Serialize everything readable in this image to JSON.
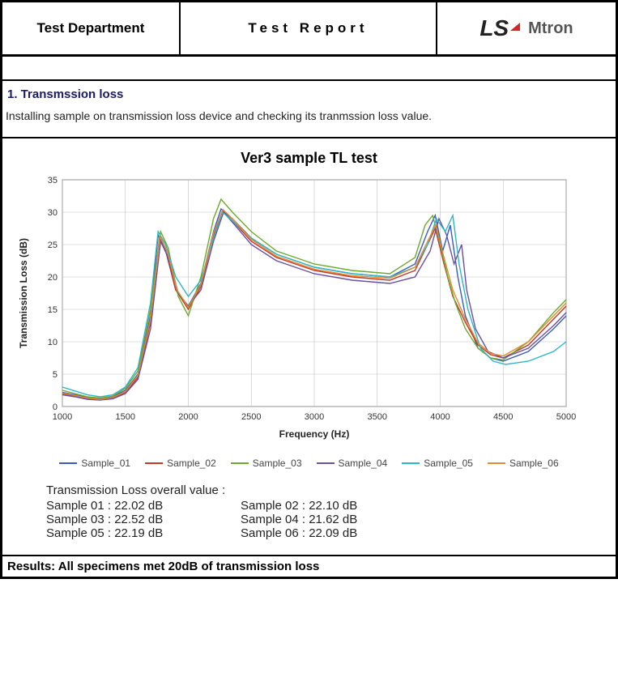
{
  "header": {
    "dept": "Test Department",
    "title": "Test  Report",
    "logo_ls": "LS",
    "logo_mtron": "Mtron"
  },
  "section1": {
    "title": "1. Transmssion loss",
    "desc": "Installing sample on transmission loss device and checking its tranmssion loss value."
  },
  "chart": {
    "type": "line",
    "title": "Ver3 sample TL test",
    "xlabel": "Frequency (Hz)",
    "ylabel": "Transmission  Loss (dB)",
    "xlim": [
      1000,
      5000
    ],
    "ylim": [
      0,
      35
    ],
    "xtick_step": 500,
    "ytick_step": 5,
    "xticks": [
      1000,
      1500,
      2000,
      2500,
      3000,
      3500,
      4000,
      4500,
      5000
    ],
    "yticks": [
      0,
      5,
      10,
      15,
      20,
      25,
      30,
      35
    ],
    "background_color": "#ffffff",
    "grid_color": "#bfbfbf",
    "axis_color": "#666666",
    "tick_fontsize": 11,
    "label_fontsize": 12,
    "title_fontsize": 17,
    "line_width": 1.4,
    "series": [
      {
        "name": "Sample_01",
        "color": "#3b5bbf",
        "data": [
          [
            1000,
            2.2
          ],
          [
            1100,
            1.8
          ],
          [
            1200,
            1.4
          ],
          [
            1300,
            1.2
          ],
          [
            1400,
            1.5
          ],
          [
            1500,
            2.5
          ],
          [
            1600,
            5
          ],
          [
            1700,
            14
          ],
          [
            1760,
            26.5
          ],
          [
            1820,
            24
          ],
          [
            1900,
            18
          ],
          [
            2000,
            15.5
          ],
          [
            2100,
            19
          ],
          [
            2200,
            27
          ],
          [
            2260,
            30.5
          ],
          [
            2350,
            29
          ],
          [
            2500,
            26
          ],
          [
            2700,
            23.5
          ],
          [
            3000,
            21.5
          ],
          [
            3300,
            20.5
          ],
          [
            3600,
            20
          ],
          [
            3800,
            22
          ],
          [
            3900,
            27
          ],
          [
            3960,
            29.5
          ],
          [
            4020,
            24
          ],
          [
            4080,
            28
          ],
          [
            4140,
            20
          ],
          [
            4200,
            14
          ],
          [
            4300,
            9
          ],
          [
            4400,
            7.5
          ],
          [
            4500,
            7
          ],
          [
            4700,
            8.5
          ],
          [
            4900,
            12
          ],
          [
            5000,
            14
          ]
        ]
      },
      {
        "name": "Sample_02",
        "color": "#c0392b",
        "data": [
          [
            1000,
            2.0
          ],
          [
            1100,
            1.6
          ],
          [
            1200,
            1.2
          ],
          [
            1300,
            1.1
          ],
          [
            1400,
            1.3
          ],
          [
            1500,
            2.2
          ],
          [
            1600,
            4.5
          ],
          [
            1700,
            13
          ],
          [
            1770,
            26
          ],
          [
            1830,
            23.5
          ],
          [
            1900,
            18
          ],
          [
            2000,
            15
          ],
          [
            2100,
            18.5
          ],
          [
            2200,
            26.5
          ],
          [
            2270,
            30.2
          ],
          [
            2360,
            28.5
          ],
          [
            2500,
            25.5
          ],
          [
            2700,
            23
          ],
          [
            3000,
            21
          ],
          [
            3300,
            20
          ],
          [
            3600,
            19.5
          ],
          [
            3800,
            21
          ],
          [
            3900,
            25
          ],
          [
            3960,
            27.5
          ],
          [
            4030,
            22
          ],
          [
            4100,
            17
          ],
          [
            4200,
            13
          ],
          [
            4300,
            9.5
          ],
          [
            4400,
            8
          ],
          [
            4500,
            7.5
          ],
          [
            4700,
            9.5
          ],
          [
            4900,
            13.5
          ],
          [
            5000,
            15.5
          ]
        ]
      },
      {
        "name": "Sample_03",
        "color": "#6fa82e",
        "data": [
          [
            1000,
            2.5
          ],
          [
            1100,
            2.0
          ],
          [
            1200,
            1.5
          ],
          [
            1300,
            1.3
          ],
          [
            1400,
            1.6
          ],
          [
            1500,
            2.8
          ],
          [
            1600,
            5.5
          ],
          [
            1700,
            15
          ],
          [
            1780,
            27
          ],
          [
            1840,
            24.5
          ],
          [
            1920,
            17
          ],
          [
            2000,
            14
          ],
          [
            2100,
            20
          ],
          [
            2200,
            29
          ],
          [
            2260,
            32
          ],
          [
            2350,
            30
          ],
          [
            2500,
            27
          ],
          [
            2700,
            24
          ],
          [
            3000,
            22
          ],
          [
            3300,
            21
          ],
          [
            3600,
            20.5
          ],
          [
            3800,
            23
          ],
          [
            3880,
            28
          ],
          [
            3940,
            29.5
          ],
          [
            4000,
            25
          ],
          [
            4060,
            20
          ],
          [
            4120,
            16
          ],
          [
            4200,
            12
          ],
          [
            4300,
            9
          ],
          [
            4400,
            7.5
          ],
          [
            4500,
            7.2
          ],
          [
            4700,
            10
          ],
          [
            4900,
            14.5
          ],
          [
            5000,
            16.5
          ]
        ]
      },
      {
        "name": "Sample_04",
        "color": "#6b4fa0",
        "data": [
          [
            1000,
            1.8
          ],
          [
            1100,
            1.5
          ],
          [
            1200,
            1.1
          ],
          [
            1300,
            1.0
          ],
          [
            1400,
            1.2
          ],
          [
            1500,
            2.0
          ],
          [
            1600,
            4.2
          ],
          [
            1700,
            12
          ],
          [
            1780,
            25.5
          ],
          [
            1840,
            23
          ],
          [
            1920,
            17.5
          ],
          [
            2000,
            15.5
          ],
          [
            2100,
            18
          ],
          [
            2200,
            25.5
          ],
          [
            2280,
            30
          ],
          [
            2370,
            28
          ],
          [
            2500,
            25
          ],
          [
            2700,
            22.5
          ],
          [
            3000,
            20.5
          ],
          [
            3300,
            19.5
          ],
          [
            3600,
            19
          ],
          [
            3800,
            20
          ],
          [
            3920,
            24
          ],
          [
            3990,
            29
          ],
          [
            4050,
            26.5
          ],
          [
            4110,
            22
          ],
          [
            4170,
            25
          ],
          [
            4210,
            18
          ],
          [
            4280,
            12
          ],
          [
            4380,
            8.5
          ],
          [
            4500,
            7.5
          ],
          [
            4700,
            9
          ],
          [
            4900,
            12.5
          ],
          [
            5000,
            14.5
          ]
        ]
      },
      {
        "name": "Sample_05",
        "color": "#2bb7c4",
        "data": [
          [
            1000,
            3.0
          ],
          [
            1100,
            2.4
          ],
          [
            1200,
            1.8
          ],
          [
            1300,
            1.5
          ],
          [
            1400,
            1.8
          ],
          [
            1500,
            3.0
          ],
          [
            1600,
            6
          ],
          [
            1700,
            16
          ],
          [
            1760,
            27
          ],
          [
            1820,
            25
          ],
          [
            1900,
            20
          ],
          [
            2000,
            17
          ],
          [
            2100,
            19.5
          ],
          [
            2200,
            26
          ],
          [
            2270,
            30
          ],
          [
            2360,
            28.5
          ],
          [
            2500,
            26
          ],
          [
            2700,
            23.5
          ],
          [
            3000,
            21.5
          ],
          [
            3300,
            20.5
          ],
          [
            3600,
            20
          ],
          [
            3800,
            21.5
          ],
          [
            3900,
            25
          ],
          [
            3970,
            29
          ],
          [
            4040,
            27
          ],
          [
            4100,
            29.5
          ],
          [
            4150,
            22
          ],
          [
            4220,
            15
          ],
          [
            4320,
            9
          ],
          [
            4420,
            7
          ],
          [
            4520,
            6.5
          ],
          [
            4700,
            7
          ],
          [
            4900,
            8.5
          ],
          [
            5000,
            10
          ]
        ]
      },
      {
        "name": "Sample_06",
        "color": "#e08b2f",
        "data": [
          [
            1000,
            2.1
          ],
          [
            1100,
            1.7
          ],
          [
            1200,
            1.3
          ],
          [
            1300,
            1.1
          ],
          [
            1400,
            1.4
          ],
          [
            1500,
            2.3
          ],
          [
            1600,
            4.8
          ],
          [
            1700,
            13.5
          ],
          [
            1775,
            26.3
          ],
          [
            1835,
            23.8
          ],
          [
            1910,
            18
          ],
          [
            2000,
            15.3
          ],
          [
            2100,
            18.8
          ],
          [
            2200,
            26.8
          ],
          [
            2275,
            30.4
          ],
          [
            2365,
            28.7
          ],
          [
            2500,
            25.8
          ],
          [
            2700,
            23.2
          ],
          [
            3000,
            21.2
          ],
          [
            3300,
            20.2
          ],
          [
            3600,
            19.8
          ],
          [
            3800,
            21.5
          ],
          [
            3900,
            25.5
          ],
          [
            3965,
            28
          ],
          [
            4030,
            23
          ],
          [
            4100,
            18
          ],
          [
            4200,
            13.5
          ],
          [
            4300,
            9.8
          ],
          [
            4400,
            8.2
          ],
          [
            4500,
            7.8
          ],
          [
            4700,
            10
          ],
          [
            4900,
            14
          ],
          [
            5000,
            16
          ]
        ]
      }
    ]
  },
  "overall": {
    "title": "Transmission Loss overall value :",
    "rows": [
      [
        "Sample 01 : 22.02 dB",
        "Sample 02 : 22.10 dB"
      ],
      [
        "Sample 03 : 22.52 dB",
        "Sample 04 : 21.62 dB"
      ],
      [
        "Sample 05 : 22.19 dB",
        "Sample 06 : 22.09 dB"
      ]
    ]
  },
  "results": "Results: All specimens met 20dB of transmission loss"
}
